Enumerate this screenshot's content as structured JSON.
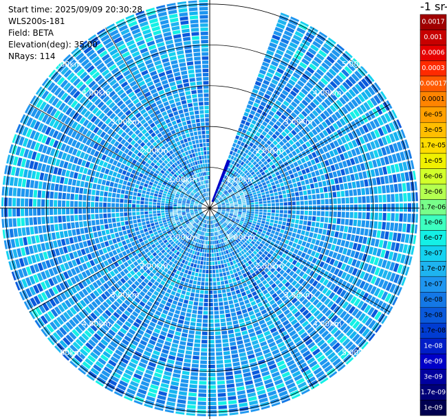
{
  "header": {
    "start_time": "Start time: 2025/09/09 20:30:28",
    "instrument": "WLS200s-181",
    "field": "Field: BETA",
    "elevation": "Elevation(deg): 35.00",
    "nrays": "NRays: 114"
  },
  "colorbar": {
    "unit_label": "-1 sr-",
    "ticks": [
      "0.0017",
      "0.001",
      "0.0006",
      "0.0003",
      "0.00017",
      "0.0001",
      "6e-05",
      "3e-05",
      "1.7e-05",
      "1e-05",
      "6e-06",
      "3e-06",
      "1.7e-06",
      "1e-06",
      "6e-07",
      "3e-07",
      "1.7e-07",
      "1e-07",
      "6e-08",
      "3e-08",
      "1.7e-08",
      "1e-08",
      "6e-09",
      "3e-09",
      "1.7e-09",
      "1e-09"
    ],
    "colors": [
      "#a00000",
      "#c80000",
      "#e60000",
      "#ff2a00",
      "#ff5a00",
      "#ff8400",
      "#ffa000",
      "#ffbe00",
      "#ffdc00",
      "#f0f000",
      "#d2ff2a",
      "#b4ff50",
      "#78ff8a",
      "#3cffc0",
      "#14f0e6",
      "#14d2f0",
      "#1eb4f0",
      "#1e96f0",
      "#1478e6",
      "#0a5adc",
      "#003cd2",
      "#001ec8",
      "#0000c8",
      "#0000a0",
      "#000078",
      "#000050"
    ]
  },
  "chart_data": {
    "type": "heatmap",
    "projection": "polar PPI",
    "field": "BETA",
    "elevation_deg": 35.0,
    "nrays": 114,
    "range_ring_labels": [
      "1.00km",
      "2.00km",
      "3.00km",
      "4.00km",
      "5.00km"
    ],
    "range_rings_km": [
      1,
      2,
      3,
      4,
      5
    ],
    "max_range_km": 5.1,
    "scan_gap_azimuth_deg": [
      0,
      20
    ],
    "dominant_value_range": [
      6e-08,
      1e-07
    ],
    "grid": true
  }
}
